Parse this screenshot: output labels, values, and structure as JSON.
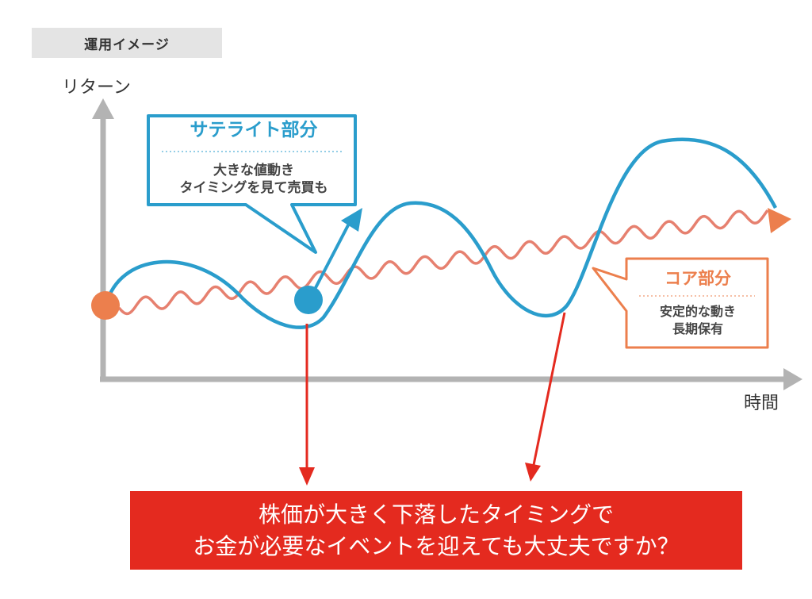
{
  "header": {
    "title": "運用イメージ"
  },
  "axes": {
    "y_label": "リターン",
    "x_label": "時間"
  },
  "satellite_callout": {
    "title": "サテライト部分",
    "line1": "大きな値動き",
    "line2": "タイミングを見て売買も"
  },
  "core_callout": {
    "title": "コア部分",
    "line1": "安定的な動き",
    "line2": "長期保有"
  },
  "question": {
    "line1": "株価が大きく下落したタイミングで",
    "line2": "お金が必要なイベントを迎えても大丈夫ですか？"
  },
  "colors": {
    "satellite": "#2a9dcc",
    "core": "#ec7f4d",
    "core_line": "#e6806f",
    "axis": "#b3b3b3",
    "alert": "#e42a1f",
    "header_bg": "#e4e4e4"
  }
}
